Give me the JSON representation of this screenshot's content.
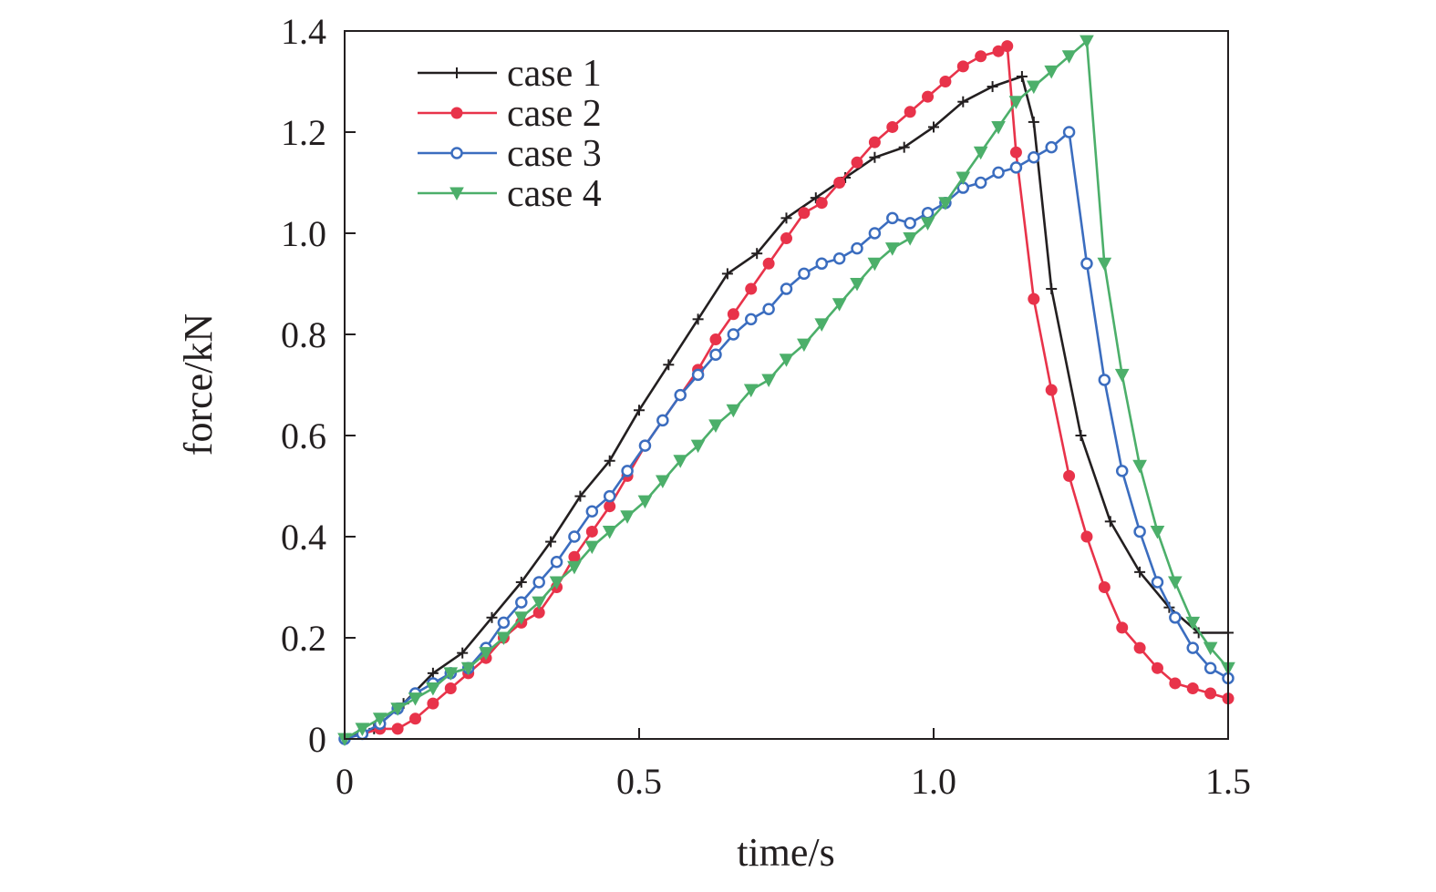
{
  "chart_data": {
    "type": "line",
    "title": "",
    "xlabel": "time/s",
    "ylabel": "force/kN",
    "xlim": [
      0,
      1.5
    ],
    "ylim": [
      0,
      1.4
    ],
    "xticks": [
      0,
      0.5,
      1.0,
      1.5
    ],
    "xtick_labels": [
      "0",
      "0.5",
      "1.0",
      "1.5"
    ],
    "yticks": [
      0,
      0.2,
      0.4,
      0.6,
      0.8,
      1.0,
      1.2,
      1.4
    ],
    "ytick_labels": [
      "0",
      "0.2",
      "0.4",
      "0.6",
      "0.8",
      "1.0",
      "1.2",
      "1.4"
    ],
    "grid": false,
    "legend_position": "top-left",
    "series": [
      {
        "name": "case 1",
        "color": "#231f20",
        "marker": "plus",
        "x": [
          0,
          0.05,
          0.1,
          0.15,
          0.2,
          0.25,
          0.3,
          0.35,
          0.4,
          0.45,
          0.5,
          0.55,
          0.6,
          0.65,
          0.7,
          0.75,
          0.8,
          0.85,
          0.9,
          0.95,
          1.0,
          1.05,
          1.1,
          1.15,
          1.17,
          1.2,
          1.25,
          1.3,
          1.35,
          1.4,
          1.45,
          1.5
        ],
        "values": [
          0,
          0.02,
          0.07,
          0.13,
          0.17,
          0.24,
          0.31,
          0.39,
          0.48,
          0.55,
          0.65,
          0.74,
          0.83,
          0.92,
          0.96,
          1.03,
          1.07,
          1.11,
          1.15,
          1.17,
          1.21,
          1.26,
          1.29,
          1.31,
          1.22,
          0.89,
          0.6,
          0.43,
          0.33,
          0.26,
          0.21,
          0.21
        ]
      },
      {
        "name": "case 2",
        "color": "#e8334a",
        "marker": "circle",
        "x": [
          0,
          0.03,
          0.06,
          0.09,
          0.12,
          0.15,
          0.18,
          0.21,
          0.24,
          0.27,
          0.3,
          0.33,
          0.36,
          0.39,
          0.42,
          0.45,
          0.48,
          0.51,
          0.54,
          0.57,
          0.6,
          0.63,
          0.66,
          0.69,
          0.72,
          0.75,
          0.78,
          0.81,
          0.84,
          0.87,
          0.9,
          0.93,
          0.96,
          0.99,
          1.02,
          1.05,
          1.08,
          1.11,
          1.125,
          1.14,
          1.17,
          1.2,
          1.23,
          1.26,
          1.29,
          1.32,
          1.35,
          1.38,
          1.41,
          1.44,
          1.47,
          1.5
        ],
        "values": [
          0,
          0.01,
          0.02,
          0.02,
          0.04,
          0.07,
          0.1,
          0.13,
          0.16,
          0.2,
          0.23,
          0.25,
          0.3,
          0.36,
          0.41,
          0.46,
          0.52,
          0.58,
          0.63,
          0.68,
          0.73,
          0.79,
          0.84,
          0.89,
          0.94,
          0.99,
          1.04,
          1.06,
          1.1,
          1.14,
          1.18,
          1.21,
          1.24,
          1.27,
          1.3,
          1.33,
          1.35,
          1.36,
          1.37,
          1.16,
          0.87,
          0.69,
          0.52,
          0.4,
          0.3,
          0.22,
          0.18,
          0.14,
          0.11,
          0.1,
          0.09,
          0.08
        ]
      },
      {
        "name": "case 3",
        "color": "#3b6dbf",
        "marker": "circle-open",
        "x": [
          0,
          0.03,
          0.06,
          0.09,
          0.12,
          0.15,
          0.18,
          0.21,
          0.24,
          0.27,
          0.3,
          0.33,
          0.36,
          0.39,
          0.42,
          0.45,
          0.48,
          0.51,
          0.54,
          0.57,
          0.6,
          0.63,
          0.66,
          0.69,
          0.72,
          0.75,
          0.78,
          0.81,
          0.84,
          0.87,
          0.9,
          0.93,
          0.96,
          0.99,
          1.02,
          1.05,
          1.08,
          1.11,
          1.14,
          1.17,
          1.2,
          1.23,
          1.26,
          1.29,
          1.32,
          1.35,
          1.38,
          1.41,
          1.44,
          1.47,
          1.5
        ],
        "values": [
          0,
          0.01,
          0.03,
          0.06,
          0.09,
          0.11,
          0.13,
          0.14,
          0.18,
          0.23,
          0.27,
          0.31,
          0.35,
          0.4,
          0.45,
          0.48,
          0.53,
          0.58,
          0.63,
          0.68,
          0.72,
          0.76,
          0.8,
          0.83,
          0.85,
          0.89,
          0.92,
          0.94,
          0.95,
          0.97,
          1.0,
          1.03,
          1.02,
          1.04,
          1.06,
          1.09,
          1.1,
          1.12,
          1.13,
          1.15,
          1.17,
          1.2,
          0.94,
          0.71,
          0.53,
          0.41,
          0.31,
          0.24,
          0.18,
          0.14,
          0.12
        ]
      },
      {
        "name": "case 4",
        "color": "#4caf6a",
        "marker": "triangle-down",
        "x": [
          0,
          0.03,
          0.06,
          0.09,
          0.12,
          0.15,
          0.18,
          0.21,
          0.24,
          0.27,
          0.3,
          0.33,
          0.36,
          0.39,
          0.42,
          0.45,
          0.48,
          0.51,
          0.54,
          0.57,
          0.6,
          0.63,
          0.66,
          0.69,
          0.72,
          0.75,
          0.78,
          0.81,
          0.84,
          0.87,
          0.9,
          0.93,
          0.96,
          0.99,
          1.02,
          1.05,
          1.08,
          1.11,
          1.14,
          1.17,
          1.2,
          1.23,
          1.26,
          1.29,
          1.32,
          1.35,
          1.38,
          1.41,
          1.44,
          1.47,
          1.5
        ],
        "values": [
          0,
          0.02,
          0.04,
          0.06,
          0.08,
          0.1,
          0.13,
          0.14,
          0.17,
          0.2,
          0.24,
          0.27,
          0.31,
          0.34,
          0.38,
          0.41,
          0.44,
          0.47,
          0.51,
          0.55,
          0.58,
          0.62,
          0.65,
          0.69,
          0.71,
          0.75,
          0.78,
          0.82,
          0.86,
          0.9,
          0.94,
          0.97,
          0.99,
          1.02,
          1.06,
          1.11,
          1.16,
          1.21,
          1.26,
          1.29,
          1.32,
          1.35,
          1.38,
          0.94,
          0.72,
          0.54,
          0.41,
          0.31,
          0.23,
          0.18,
          0.14
        ]
      }
    ]
  }
}
